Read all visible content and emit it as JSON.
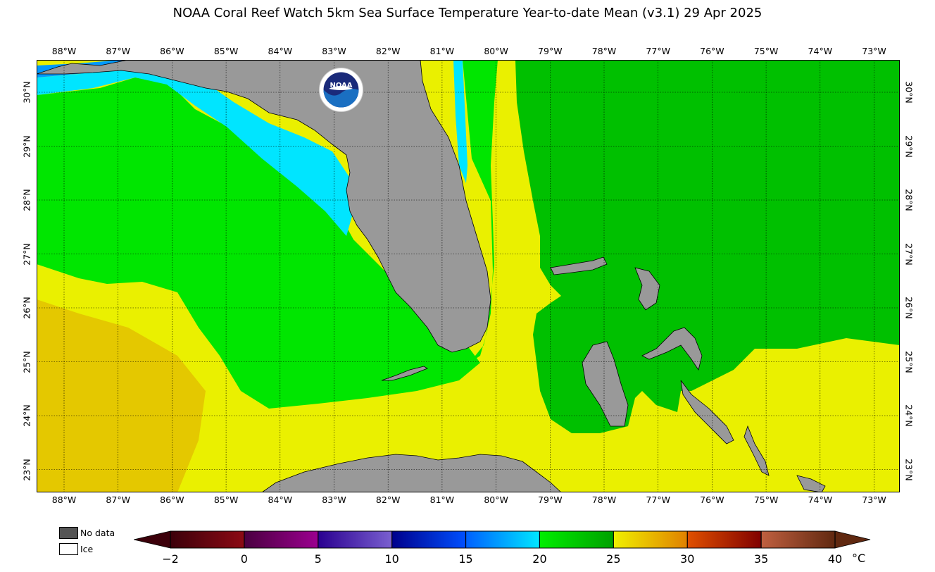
{
  "title": "NOAA Coral Reef Watch 5km Sea Surface Temperature Year-to-date Mean  (v3.1)   29 Apr 2025",
  "map": {
    "lon_labels": [
      "88°W",
      "87°W",
      "86°W",
      "85°W",
      "84°W",
      "83°W",
      "82°W",
      "81°W",
      "80°W",
      "79°W",
      "78°W",
      "77°W",
      "76°W",
      "75°W",
      "74°W",
      "73°W"
    ],
    "lat_labels": [
      "30°N",
      "29°N",
      "28°N",
      "27°N",
      "26°N",
      "25°N",
      "24°N",
      "23°N"
    ],
    "logo_text": "NOAA",
    "colors": {
      "land": "#999999",
      "cool_blue": "#0099ff",
      "cyan": "#00e5ff",
      "green_bright": "#00e600",
      "green_mid": "#00c000",
      "green_dark": "#00a800",
      "yellow": "#eaf000",
      "yellow_orange": "#e4c800"
    }
  },
  "legend": {
    "no_data_label": "No data",
    "no_data_color": "#555555",
    "ice_label": "Ice",
    "ice_color": "#ffffff"
  },
  "colorbar": {
    "ticks": [
      "−2",
      "0",
      "5",
      "10",
      "15",
      "20",
      "25",
      "30",
      "35",
      "40"
    ],
    "unit": "°C",
    "segments": [
      {
        "from": "#3c000a",
        "to": "#8c0a14"
      },
      {
        "from": "#4a0040",
        "to": "#9c0090"
      },
      {
        "from": "#2a0090",
        "to": "#7a60d0"
      },
      {
        "from": "#00008c",
        "to": "#0050ff"
      },
      {
        "from": "#0060ff",
        "to": "#00e8ff"
      },
      {
        "from": "#00ee00",
        "to": "#00a000"
      },
      {
        "from": "#f0f000",
        "to": "#e08000"
      },
      {
        "from": "#e05000",
        "to": "#800000"
      },
      {
        "from": "#c06040",
        "to": "#602810"
      }
    ]
  }
}
